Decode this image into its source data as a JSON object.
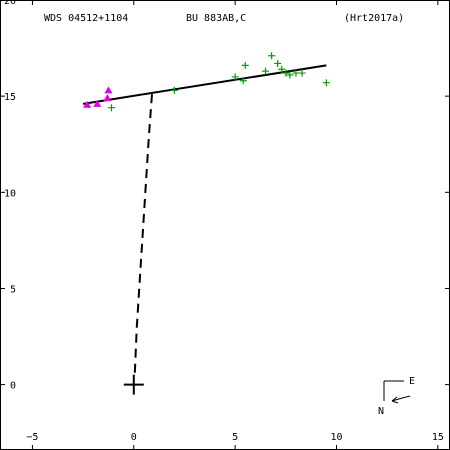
{
  "chart_data": {
    "type": "scatter",
    "header": {
      "left": "WDS 04512+1104",
      "center": "BU  883AB,C",
      "right": "(Hrt2017a)"
    },
    "xlim": [
      -6.6,
      15.6
    ],
    "ylim": [
      -3.4,
      20
    ],
    "x_ticks": [
      -5,
      0,
      5,
      10,
      15
    ],
    "y_ticks": [
      0,
      5,
      10,
      15,
      20
    ],
    "grid": false,
    "primary_marker": {
      "x": 0,
      "y": 0
    },
    "orbit_line": {
      "x1": -2.5,
      "y1": 14.6,
      "x2": 9.5,
      "y2": 16.6
    },
    "dashed_line": [
      {
        "x": 0.9,
        "y": 15.1
      },
      {
        "x": 0.75,
        "y": 13.0
      },
      {
        "x": 0.45,
        "y": 8.0
      },
      {
        "x": 0.15,
        "y": 3.0
      },
      {
        "x": 0.05,
        "y": 0.6
      }
    ],
    "series": [
      {
        "marker": "plus",
        "color": "#00a000",
        "points": [
          {
            "x": -1.1,
            "y": 14.4
          },
          {
            "x": 2.0,
            "y": 15.3
          },
          {
            "x": 5.0,
            "y": 16.0
          },
          {
            "x": 5.4,
            "y": 15.8
          },
          {
            "x": 5.5,
            "y": 16.6
          },
          {
            "x": 6.5,
            "y": 16.3
          },
          {
            "x": 6.8,
            "y": 17.1
          },
          {
            "x": 7.1,
            "y": 16.7
          },
          {
            "x": 7.3,
            "y": 16.4
          },
          {
            "x": 7.5,
            "y": 16.2
          },
          {
            "x": 7.7,
            "y": 16.1
          },
          {
            "x": 8.0,
            "y": 16.2
          },
          {
            "x": 8.3,
            "y": 16.2
          },
          {
            "x": 9.5,
            "y": 15.7
          }
        ]
      },
      {
        "marker": "triangle",
        "color": "#e000e0",
        "points": [
          {
            "x": -2.3,
            "y": 14.55
          },
          {
            "x": -1.8,
            "y": 14.6
          },
          {
            "x": -1.3,
            "y": 14.9
          },
          {
            "x": -1.25,
            "y": 15.3
          }
        ]
      }
    ],
    "compass": {
      "east": "E",
      "north": "N"
    }
  }
}
